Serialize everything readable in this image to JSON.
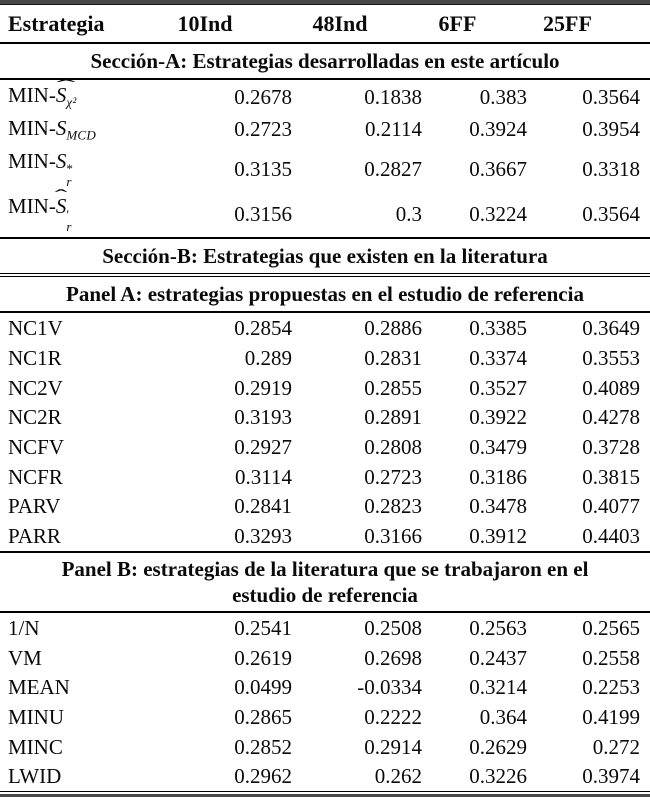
{
  "table": {
    "columns": [
      "Estrategia",
      "10Ind",
      "48Ind",
      "6FF",
      "25FF"
    ],
    "sections": [
      {
        "heading": "Sección-A: Estrategias desarrolladas en este artículo",
        "type": "section",
        "rows": [
          {
            "label": {
              "text": "MIN-",
              "math": {
                "base": "S",
                "hat": true,
                "sup": "",
                "sub": "χ²"
              }
            },
            "values": [
              "0.2678",
              "0.1838",
              "0.383",
              "0.3564"
            ]
          },
          {
            "label": {
              "text": "MIN-",
              "math": {
                "base": "S",
                "hat": false,
                "sup": "",
                "sub": "MCD"
              }
            },
            "values": [
              "0.2723",
              "0.2114",
              "0.3924",
              "0.3954"
            ]
          },
          {
            "label": {
              "text": "MIN-",
              "math": {
                "base": "S",
                "hat": false,
                "sup": "*",
                "sub": "r"
              }
            },
            "values": [
              "0.3135",
              "0.2827",
              "0.3667",
              "0.3318"
            ]
          },
          {
            "label": {
              "text": "MIN-",
              "math": {
                "base": "S",
                "hat": true,
                "sup": "′",
                "sub": "r"
              }
            },
            "values": [
              "0.3156",
              "0.3",
              "0.3224",
              "0.3564"
            ]
          }
        ]
      },
      {
        "heading": "Sección-B: Estrategias que existen en la literatura",
        "type": "section",
        "rows": []
      },
      {
        "heading": "Panel A: estrategias propuestas en el estudio de referencia",
        "type": "panel",
        "rows": [
          {
            "label": {
              "text": "NC1V"
            },
            "values": [
              "0.2854",
              "0.2886",
              "0.3385",
              "0.3649"
            ]
          },
          {
            "label": {
              "text": "NC1R"
            },
            "values": [
              "0.289",
              "0.2831",
              "0.3374",
              "0.3553"
            ]
          },
          {
            "label": {
              "text": "NC2V"
            },
            "values": [
              "0.2919",
              "0.2855",
              "0.3527",
              "0.4089"
            ]
          },
          {
            "label": {
              "text": "NC2R"
            },
            "values": [
              "0.3193",
              "0.2891",
              "0.3922",
              "0.4278"
            ]
          },
          {
            "label": {
              "text": "NCFV"
            },
            "values": [
              "0.2927",
              "0.2808",
              "0.3479",
              "0.3728"
            ]
          },
          {
            "label": {
              "text": "NCFR"
            },
            "values": [
              "0.3114",
              "0.2723",
              "0.3186",
              "0.3815"
            ]
          },
          {
            "label": {
              "text": "PARV"
            },
            "values": [
              "0.2841",
              "0.2823",
              "0.3478",
              "0.4077"
            ]
          },
          {
            "label": {
              "text": "PARR"
            },
            "values": [
              "0.3293",
              "0.3166",
              "0.3912",
              "0.4403"
            ]
          }
        ]
      },
      {
        "heading": "Panel B: estrategias de la literatura que se trabajaron en el estudio de referencia",
        "type": "panel",
        "rows": [
          {
            "label": {
              "text": "1/N"
            },
            "values": [
              "0.2541",
              "0.2508",
              "0.2563",
              "0.2565"
            ]
          },
          {
            "label": {
              "text": "VM"
            },
            "values": [
              "0.2619",
              "0.2698",
              "0.2437",
              "0.2558"
            ]
          },
          {
            "label": {
              "text": "MEAN"
            },
            "values": [
              "0.0499",
              "-0.0334",
              "0.3214",
              "0.2253"
            ]
          },
          {
            "label": {
              "text": "MINU"
            },
            "values": [
              "0.2865",
              "0.2222",
              "0.364",
              "0.4199"
            ]
          },
          {
            "label": {
              "text": "MINC"
            },
            "values": [
              "0.2852",
              "0.2914",
              "0.2629",
              "0.272"
            ]
          },
          {
            "label": {
              "text": "LWID"
            },
            "values": [
              "0.2962",
              "0.262",
              "0.3226",
              "0.3974"
            ]
          }
        ]
      }
    ]
  },
  "colors": {
    "text": "#0a0a0a",
    "rule": "#000000",
    "thick_rule": "#474747",
    "background": "#ffffff"
  }
}
